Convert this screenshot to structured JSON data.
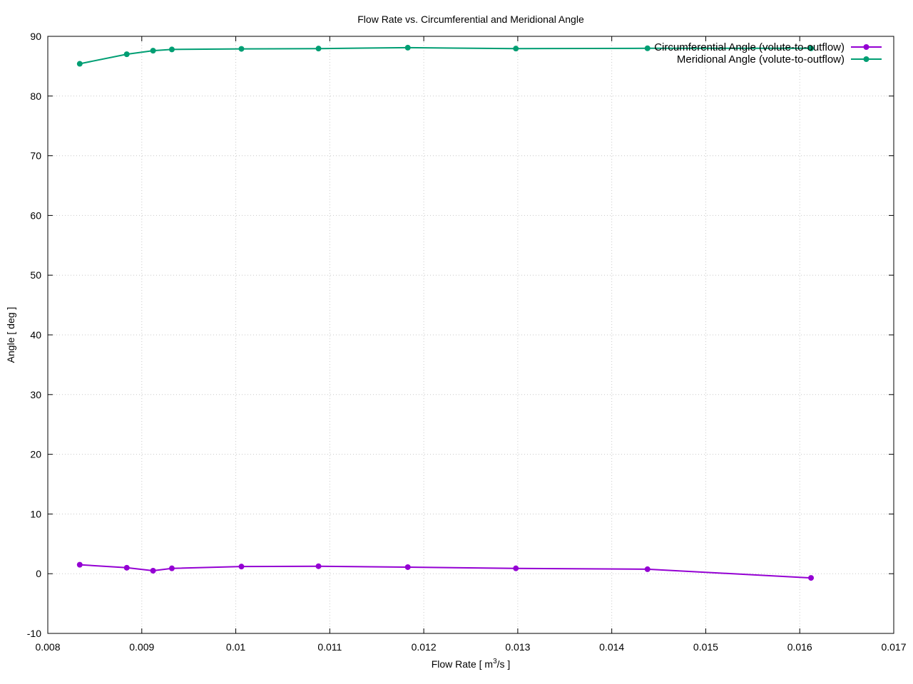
{
  "chart_data": {
    "type": "line",
    "title": "Flow Rate vs. Circumferential and Meridional Angle",
    "xlabel": "Flow Rate [ m3/s ]",
    "xlabel_parts": {
      "main": "Flow Rate [ m",
      "sup": "3",
      "tail": "/s ]"
    },
    "ylabel": "Angle [ deg ]",
    "xlim": [
      0.008,
      0.017
    ],
    "ylim": [
      -10,
      90
    ],
    "xticks": [
      0.008,
      0.009,
      0.01,
      0.011,
      0.012,
      0.013,
      0.014,
      0.015,
      0.016,
      0.017
    ],
    "xtick_labels": [
      "0.008",
      "0.009",
      "0.01",
      "0.011",
      "0.012",
      "0.013",
      "0.014",
      "0.015",
      "0.016",
      "0.017"
    ],
    "yticks": [
      -10,
      0,
      10,
      20,
      30,
      40,
      50,
      60,
      70,
      80,
      90
    ],
    "ytick_labels": [
      "-10",
      "0",
      "10",
      "20",
      "30",
      "40",
      "50",
      "60",
      "70",
      "80",
      "90"
    ],
    "grid": true,
    "legend_position": "top-right",
    "series": [
      {
        "name": "Circumferential Angle (volute-to-outflow)",
        "color": "#9400d3",
        "x": [
          0.00834,
          0.00884,
          0.00912,
          0.00932,
          0.01006,
          0.01088,
          0.01183,
          0.01298,
          0.01438,
          0.01612
        ],
        "y": [
          1.5,
          1.0,
          0.5,
          0.9,
          1.2,
          1.25,
          1.1,
          0.9,
          0.75,
          -0.7
        ]
      },
      {
        "name": "Meridional Angle (volute-to-outflow)",
        "color": "#009e73",
        "x": [
          0.00834,
          0.00884,
          0.00912,
          0.00932,
          0.01006,
          0.01088,
          0.01183,
          0.01298,
          0.01438,
          0.01612
        ],
        "y": [
          85.4,
          87.0,
          87.6,
          87.8,
          87.9,
          87.95,
          88.1,
          87.95,
          88.0,
          88.0
        ]
      }
    ]
  }
}
